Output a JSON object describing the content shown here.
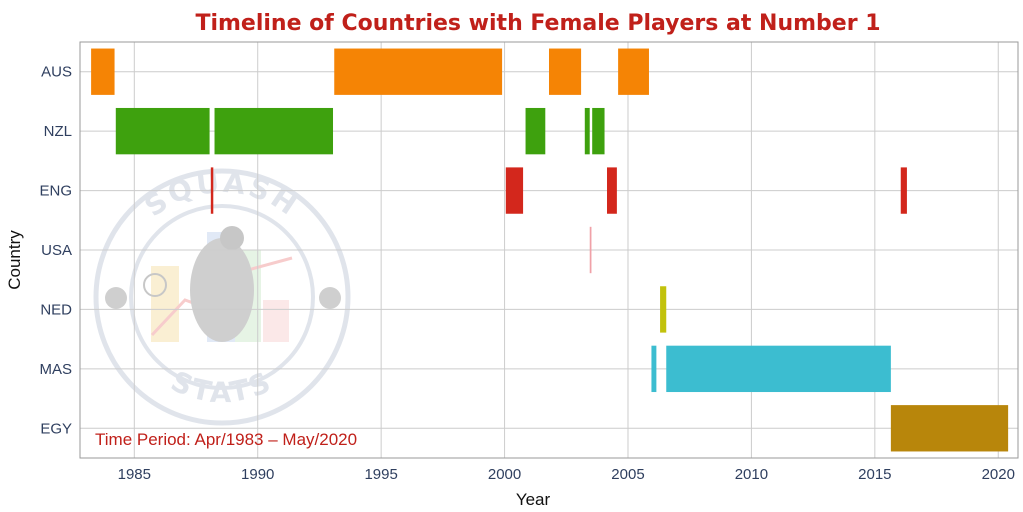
{
  "chart_data": {
    "type": "timeline",
    "title": "Timeline of Countries with Female Players at Number 1",
    "xlabel": "Year",
    "ylabel": "Country",
    "xlim": [
      1982.8,
      2020.8
    ],
    "x_ticks": [
      "1985",
      "1990",
      "1995",
      "2000",
      "2005",
      "2010",
      "2015",
      "2020"
    ],
    "categories": [
      "AUS",
      "NZL",
      "ENG",
      "USA",
      "NED",
      "MAS",
      "EGY"
    ],
    "annotation": "Time Period: Apr/1983 – May/2020",
    "grid": true,
    "series": [
      {
        "category": "AUS",
        "color": "#f58405",
        "intervals": [
          [
            1983.25,
            1984.2
          ],
          [
            1993.1,
            1999.9
          ],
          [
            2001.8,
            2003.1
          ],
          [
            2004.6,
            2005.85
          ]
        ]
      },
      {
        "category": "NZL",
        "color": "#3ea10e",
        "intervals": [
          [
            1984.25,
            1988.05
          ],
          [
            1988.25,
            1993.05
          ],
          [
            2000.85,
            2001.65
          ],
          [
            2003.25,
            2003.45
          ],
          [
            2003.55,
            2004.05
          ]
        ]
      },
      {
        "category": "ENG",
        "color": "#d3271c",
        "intervals": [
          [
            1988.1,
            1988.2
          ],
          [
            2000.05,
            2000.75
          ],
          [
            2004.15,
            2004.55
          ],
          [
            2016.05,
            2016.3
          ]
        ]
      },
      {
        "category": "USA",
        "color": "#f0a1a8",
        "intervals": [
          [
            2003.45,
            2003.52
          ]
        ]
      },
      {
        "category": "NED",
        "color": "#c2c20c",
        "intervals": [
          [
            2006.3,
            2006.55
          ]
        ]
      },
      {
        "category": "MAS",
        "color": "#3cbdd0",
        "intervals": [
          [
            2005.95,
            2006.15
          ],
          [
            2006.55,
            2015.65
          ]
        ]
      },
      {
        "category": "EGY",
        "color": "#b8860b",
        "intervals": [
          [
            2015.65,
            2020.4
          ]
        ]
      }
    ]
  },
  "watermark": {
    "top_text": "SQUASH",
    "bottom_text": "STATS"
  },
  "colors": {
    "title": "#c0201a",
    "annotation": "#c0201a",
    "grid": "#cccccc",
    "watermark": "#c7cfdc"
  }
}
